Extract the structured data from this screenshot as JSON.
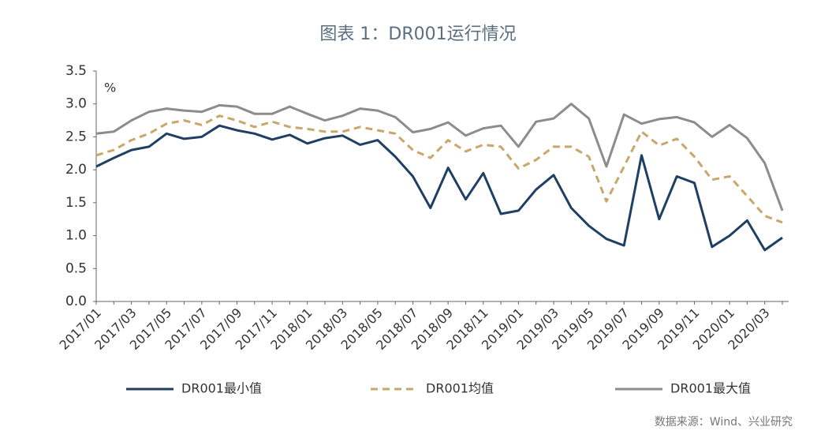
{
  "chart_data": {
    "type": "line",
    "title": "图表 1：DR001运行情况",
    "y_unit": "%",
    "source": "数据来源：Wind、兴业研究",
    "categories": [
      "2017/01",
      null,
      "2017/03",
      null,
      "2017/05",
      null,
      "2017/07",
      null,
      "2017/09",
      null,
      "2017/11",
      null,
      "2018/01",
      null,
      "2018/03",
      null,
      "2018/05",
      null,
      "2018/07",
      null,
      "2018/09",
      null,
      "2018/11",
      null,
      "2019/01",
      null,
      "2019/03",
      null,
      "2019/05",
      null,
      "2019/07",
      null,
      "2019/09",
      null,
      "2019/11",
      null,
      "2020/01",
      null,
      "2020/03",
      null
    ],
    "series": [
      {
        "name": "DR001最小值",
        "color": "#1f3f63",
        "dash": false,
        "values": [
          2.05,
          2.18,
          2.3,
          2.35,
          2.55,
          2.47,
          2.5,
          2.67,
          2.6,
          2.55,
          2.46,
          2.53,
          2.4,
          2.48,
          2.52,
          2.38,
          2.45,
          2.2,
          1.9,
          1.42,
          2.03,
          1.55,
          1.95,
          1.33,
          1.38,
          1.7,
          1.92,
          1.42,
          1.15,
          0.95,
          0.85,
          2.22,
          1.25,
          1.9,
          1.8,
          0.83,
          1.0,
          1.23,
          0.78,
          0.97
        ]
      },
      {
        "name": "DR001均值",
        "color": "#c9a66b",
        "dash": true,
        "values": [
          2.22,
          2.3,
          2.45,
          2.55,
          2.7,
          2.75,
          2.68,
          2.82,
          2.75,
          2.65,
          2.73,
          2.65,
          2.62,
          2.58,
          2.58,
          2.65,
          2.6,
          2.55,
          2.3,
          2.18,
          2.45,
          2.28,
          2.38,
          2.35,
          2.02,
          2.15,
          2.35,
          2.35,
          2.2,
          1.52,
          2.05,
          2.58,
          2.37,
          2.47,
          2.2,
          1.85,
          1.9,
          1.6,
          1.3,
          1.2
        ]
      },
      {
        "name": "DR001最大值",
        "color": "#8c8c8c",
        "dash": false,
        "values": [
          2.55,
          2.58,
          2.75,
          2.88,
          2.93,
          2.9,
          2.88,
          2.98,
          2.96,
          2.85,
          2.85,
          2.96,
          2.85,
          2.75,
          2.82,
          2.93,
          2.9,
          2.8,
          2.57,
          2.62,
          2.72,
          2.52,
          2.63,
          2.67,
          2.35,
          2.73,
          2.78,
          3.0,
          2.78,
          2.05,
          2.84,
          2.7,
          2.77,
          2.8,
          2.72,
          2.5,
          2.68,
          2.48,
          2.1,
          1.38
        ]
      }
    ],
    "ylim": [
      0,
      3.5
    ],
    "yticks": [
      {
        "value": 0,
        "label": "0.0"
      },
      0.5,
      {
        "value": 1,
        "label": "1.0"
      },
      1.5,
      {
        "value": 2,
        "label": "2.0"
      },
      2.5,
      {
        "value": 3,
        "label": "3.0"
      },
      3.5
    ],
    "grid": false
  }
}
